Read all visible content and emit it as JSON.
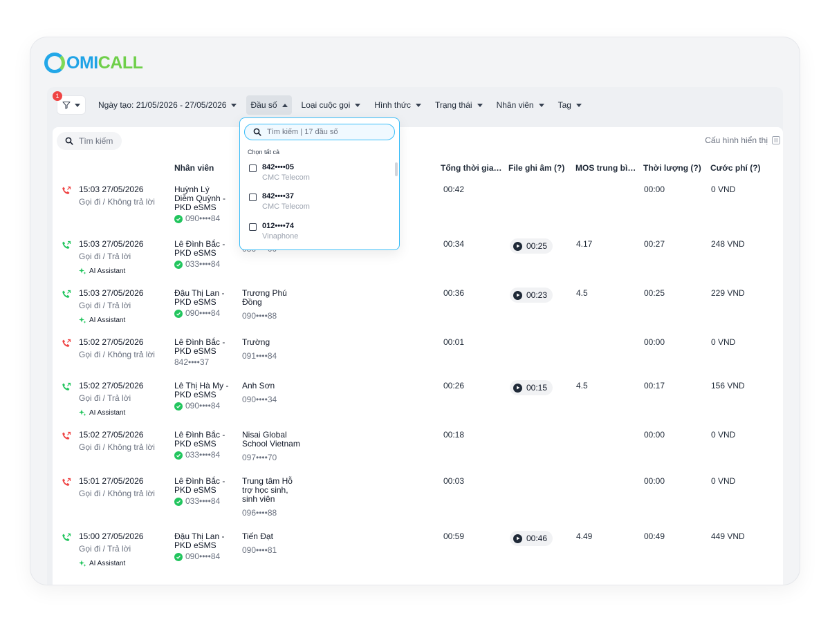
{
  "brand": {
    "logo_omi": "OMI",
    "logo_call": "CALL"
  },
  "filters": {
    "badge": "1",
    "date": "Ngày tạo: 21/05/2026 - 27/05/2026",
    "dau_so": "Đầu số",
    "loai": "Loại cuộc gọi",
    "hinh_thuc": "Hình thức",
    "trang_thai": "Trạng thái",
    "nhan_vien": "Nhân viên",
    "tag": "Tag"
  },
  "toolbar": {
    "search_placeholder": "Tìm kiếm",
    "config": "Cấu hình hiển thị"
  },
  "columns": {
    "staff": "Nhân viên",
    "total": "Tổng thời gian ...",
    "file": "File ghi âm (?)",
    "mos": "MOS trung bìn...",
    "duration": "Thời lượng (?)",
    "fee": "Cước phí (?)"
  },
  "dropdown": {
    "search_placeholder": "Tìm kiếm | 17 đầu số",
    "select_all": "Chọn tất cả",
    "items": [
      {
        "number": "842••••05",
        "carrier": "CMC Telecom"
      },
      {
        "number": "842••••37",
        "carrier": "CMC Telecom"
      },
      {
        "number": "012••••74",
        "carrier": "Vinaphone"
      }
    ]
  },
  "rows": [
    {
      "time": "15:03 27/05/2026",
      "type": "Gọi đi / Không trả lời",
      "ai": "",
      "staff": "Huỳnh Lý Diễm Quỳnh - PKD eSMS",
      "staff_phone": "090••••84",
      "customer": "",
      "customer_phone": "",
      "total": "00:42",
      "file": "",
      "mos": "",
      "duration": "00:00",
      "fee": "0 VND"
    },
    {
      "time": "15:03 27/05/2026",
      "type": "Gọi đi / Trả lời",
      "ai": "AI Assistant",
      "staff": "Lê Đình Bắc - PKD eSMS",
      "staff_phone": "033••••84",
      "customer": "",
      "customer_phone": "086••••00",
      "total": "00:34",
      "file": "00:25",
      "mos": "4.17",
      "duration": "00:27",
      "fee": "248 VND"
    },
    {
      "time": "15:03 27/05/2026",
      "type": "Gọi đi / Trả lời",
      "ai": "AI Assistant",
      "staff": "Đậu Thị Lan - PKD eSMS",
      "staff_phone": "090••••84",
      "customer": "Trương Phú Đồng",
      "customer_phone": "090••••88",
      "total": "00:36",
      "file": "00:23",
      "mos": "4.5",
      "duration": "00:25",
      "fee": "229 VND"
    },
    {
      "time": "15:02 27/05/2026",
      "type": "Gọi đi / Không trả lời",
      "ai": "",
      "staff": "Lê Đình Bắc - PKD eSMS",
      "staff_phone": "842••••37",
      "customer": "Trường",
      "customer_phone": "091••••84",
      "total": "00:01",
      "file": "",
      "mos": "",
      "duration": "00:00",
      "fee": "0 VND"
    },
    {
      "time": "15:02 27/05/2026",
      "type": "Gọi đi / Trả lời",
      "ai": "AI Assistant",
      "staff": "Lê Thị Hà My - PKD eSMS",
      "staff_phone": "090••••84",
      "customer": "Anh Sơn",
      "customer_phone": "090••••34",
      "total": "00:26",
      "file": "00:15",
      "mos": "4.5",
      "duration": "00:17",
      "fee": "156 VND"
    },
    {
      "time": "15:02 27/05/2026",
      "type": "Gọi đi / Không trả lời",
      "ai": "",
      "staff": "Lê Đình Bắc - PKD eSMS",
      "staff_phone": "033••••84",
      "customer": "Nisai Global School Vietnam",
      "customer_phone": "097••••70",
      "total": "00:18",
      "file": "",
      "mos": "",
      "duration": "00:00",
      "fee": "0 VND"
    },
    {
      "time": "15:01 27/05/2026",
      "type": "Gọi đi / Không trả lời",
      "ai": "",
      "staff": "Lê Đình Bắc - PKD eSMS",
      "staff_phone": "033••••84",
      "customer": "Trung tâm Hỗ trợ học sinh, sinh viên",
      "customer_phone": "096••••88",
      "total": "00:03",
      "file": "",
      "mos": "",
      "duration": "00:00",
      "fee": "0 VND"
    },
    {
      "time": "15:00 27/05/2026",
      "type": "Gọi đi / Trả lời",
      "ai": "AI Assistant",
      "staff": "Đậu Thị Lan - PKD eSMS",
      "staff_phone": "090••••84",
      "customer": "Tiến Đạt",
      "customer_phone": "090••••81",
      "total": "00:59",
      "file": "00:46",
      "mos": "4.49",
      "duration": "00:49",
      "fee": "449 VND"
    }
  ],
  "colors": {
    "answered": "#22c55e",
    "missed": "#ef4444",
    "accent": "#38bdf8"
  }
}
